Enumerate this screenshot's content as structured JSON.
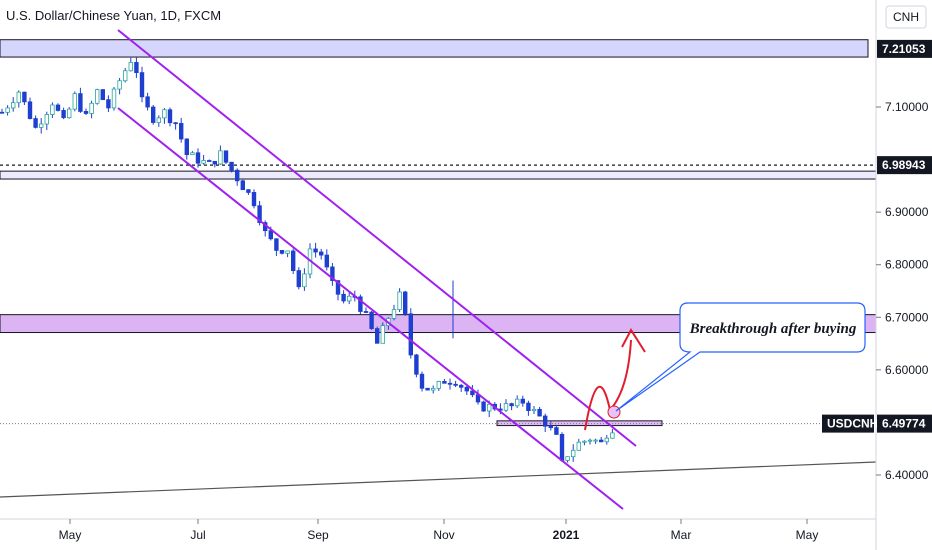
{
  "chart_data": {
    "type": "candlestick",
    "title": "U.S. Dollar/Chinese Yuan, 1D, FXCM",
    "currency": "CNH",
    "x_ticks": [
      "May",
      "Jul",
      "Sep",
      "Nov",
      "2021",
      "Mar",
      "May"
    ],
    "y_ticks": [
      "7.10000",
      "6.90000",
      "6.80000",
      "6.70000",
      "6.60000",
      "6.40000"
    ],
    "ylim": [
      6.34,
      7.27
    ],
    "price_labels": [
      {
        "value": 7.21053,
        "text": "7.21053"
      },
      {
        "value": 6.98943,
        "text": "6.98943"
      }
    ],
    "symbol": {
      "name": "USDCNH",
      "value": 6.49774,
      "text": "6.49774"
    },
    "zones": [
      {
        "from": 7.195,
        "to": 7.228
      },
      {
        "from": 6.963,
        "to": 6.978
      },
      {
        "from": 6.671,
        "to": 6.705
      },
      {
        "from": 6.494,
        "to": 6.503
      }
    ],
    "price_path": [
      [
        0,
        7.09
      ],
      [
        3,
        7.13
      ],
      [
        6,
        7.06
      ],
      [
        9,
        7.11
      ],
      [
        11,
        7.07
      ],
      [
        13,
        7.12
      ],
      [
        15,
        7.08
      ],
      [
        17,
        7.13
      ],
      [
        19,
        7.1
      ],
      [
        21,
        7.15
      ],
      [
        23,
        7.19
      ],
      [
        24,
        7.17
      ],
      [
        25,
        7.11
      ],
      [
        27,
        7.08
      ],
      [
        29,
        7.09
      ],
      [
        31,
        7.07
      ],
      [
        33,
        7.01
      ],
      [
        35,
        7.0
      ],
      [
        37,
        6.99
      ],
      [
        39,
        7.01
      ],
      [
        41,
        6.98
      ],
      [
        43,
        6.95
      ],
      [
        45,
        6.92
      ],
      [
        47,
        6.86
      ],
      [
        49,
        6.83
      ],
      [
        51,
        6.83
      ],
      [
        52,
        6.79
      ],
      [
        53,
        6.75
      ],
      [
        55,
        6.83
      ],
      [
        57,
        6.82
      ],
      [
        59,
        6.76
      ],
      [
        61,
        6.73
      ],
      [
        63,
        6.74
      ],
      [
        65,
        6.7
      ],
      [
        67,
        6.65
      ],
      [
        69,
        6.7
      ],
      [
        71,
        6.74
      ],
      [
        72,
        6.7
      ],
      [
        73,
        6.63
      ],
      [
        75,
        6.57
      ],
      [
        77,
        6.56
      ],
      [
        79,
        6.58
      ],
      [
        81,
        6.58
      ],
      [
        83,
        6.56
      ],
      [
        85,
        6.53
      ],
      [
        87,
        6.53
      ],
      [
        89,
        6.53
      ],
      [
        91,
        6.53
      ],
      [
        93,
        6.54
      ],
      [
        95,
        6.52
      ],
      [
        97,
        6.5
      ],
      [
        99,
        6.47
      ],
      [
        100,
        6.42
      ],
      [
        101,
        6.44
      ],
      [
        103,
        6.46
      ],
      [
        105,
        6.47
      ],
      [
        107,
        6.46
      ],
      [
        108,
        6.48
      ],
      [
        109,
        6.49
      ]
    ]
  }
}
